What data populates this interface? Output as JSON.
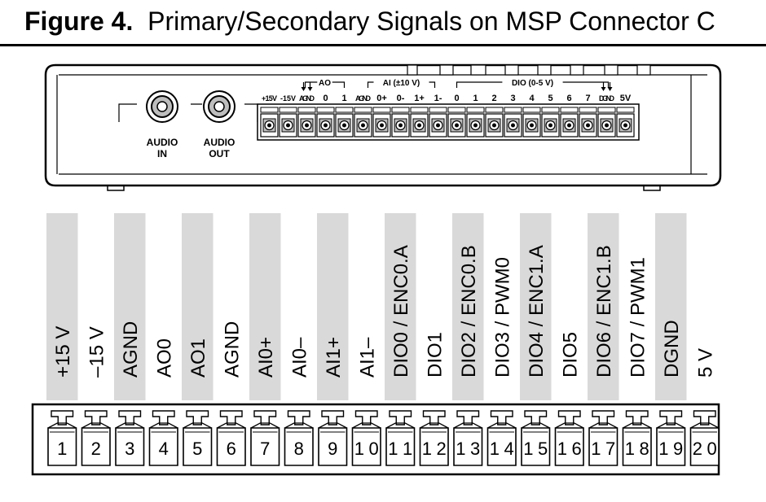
{
  "figure": {
    "label": "Figure 4.",
    "title": "Primary/Secondary Signals on MSP Connector C"
  },
  "device": {
    "audio_in": [
      "AUDIO",
      "IN"
    ],
    "audio_out": [
      "AUDIO",
      "OUT"
    ],
    "group_ao": "AO",
    "group_ai": "AI (±10 V)",
    "group_dio": "DIO (0-5 V)",
    "terminal_labels": [
      "+15V",
      "-15V",
      "AGND",
      "0",
      "1",
      "AGND",
      "0+",
      "0-",
      "1+",
      "1-",
      "0",
      "1",
      "2",
      "3",
      "4",
      "5",
      "6",
      "7",
      "DGND",
      "5V"
    ]
  },
  "connector": {
    "signals": [
      "+15 V",
      "–15 V",
      "AGND",
      "AO0",
      "AO1",
      "AGND",
      "AI0+",
      "AI0–",
      "AI1+",
      "AI1–",
      "DIO0 / ENC0.A",
      "DIO1",
      "DIO2 / ENC0.B",
      "DIO3 / PWM0",
      "DIO4 / ENC1.A",
      "DIO5",
      "DIO6 / ENC1.B",
      "DIO7 / PWM1",
      "DGND",
      "5 V"
    ],
    "shaded": [
      true,
      false,
      true,
      false,
      true,
      false,
      true,
      false,
      true,
      false,
      true,
      false,
      true,
      false,
      true,
      false,
      true,
      false,
      true,
      false
    ],
    "pins": [
      "1",
      "2",
      "3",
      "4",
      "5",
      "6",
      "7",
      "8",
      "9",
      "10",
      "11",
      "12",
      "13",
      "14",
      "15",
      "16",
      "17",
      "18",
      "19",
      "20"
    ]
  },
  "colors": {
    "shade": "#d9d9d9",
    "ink": "#000000",
    "screw_face": "#bdbdbd"
  }
}
